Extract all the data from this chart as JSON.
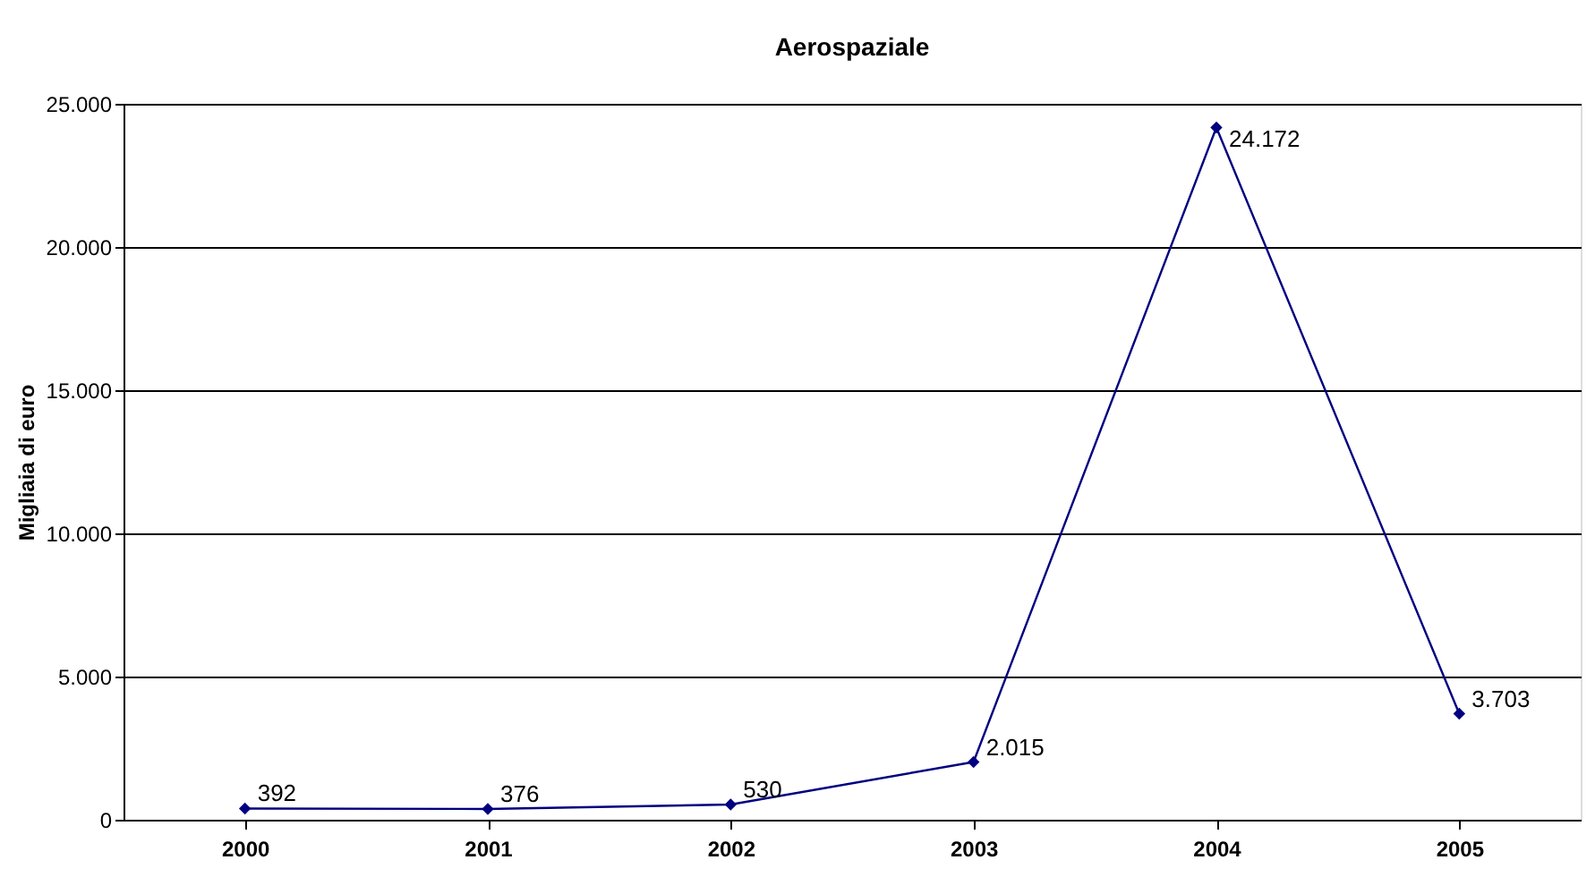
{
  "chart_data": {
    "type": "line",
    "title": "Aerospaziale",
    "ylabel": "Migliaia di euro",
    "categories": [
      "2000",
      "2001",
      "2002",
      "2003",
      "2004",
      "2005"
    ],
    "series": [
      {
        "color": "#000080",
        "values": [
          392,
          376,
          530,
          2015,
          24172,
          3703
        ],
        "value_labels": [
          "392",
          "376",
          "530",
          "2.015",
          "24.172",
          "3.703"
        ]
      }
    ],
    "ylim": [
      0,
      25000
    ],
    "yticks": [
      0,
      {
        "value": 5000,
        "label": "5.000"
      },
      {
        "value": 10000,
        "label": "10.000"
      },
      {
        "value": 15000,
        "label": "15.000"
      },
      {
        "value": 20000,
        "label": "20.000"
      },
      {
        "value": 25000,
        "label": "25.000"
      }
    ],
    "grid": "y",
    "marker": "diamond",
    "line_style": "solid"
  }
}
